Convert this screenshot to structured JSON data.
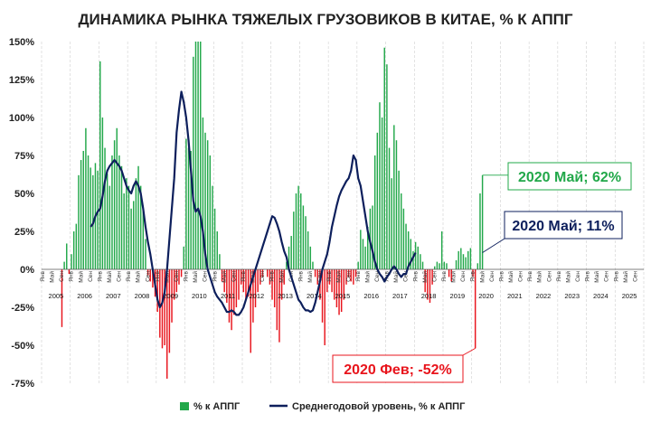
{
  "chart_data": {
    "type": "bar+line",
    "title": "ДИНАМИКА РЫНКА ТЯЖЕЛЫХ ГРУЗОВИКОВ В КИТАЕ, % К АППГ",
    "ylim": [
      -75,
      150
    ],
    "yticks": [
      "150%",
      "125%",
      "100%",
      "75%",
      "50%",
      "25%",
      "0%",
      "-25%",
      "-50%",
      "-75%"
    ],
    "ytick_values": [
      150,
      125,
      100,
      75,
      50,
      25,
      0,
      -25,
      -50,
      -75
    ],
    "month_labels": [
      "Янв",
      "Май",
      "Сен"
    ],
    "years": [
      "2005",
      "2006",
      "2007",
      "2008",
      "2009",
      "2010",
      "2011",
      "2012",
      "2013",
      "2014",
      "2015",
      "2016",
      "2017",
      "2018",
      "2019",
      "2020",
      "2021",
      "2022",
      "2023",
      "2024",
      "2025"
    ],
    "series": [
      {
        "name": "% к АППГ",
        "kind": "bar",
        "color_pos": "#22a84a",
        "color_neg": "#e8141c",
        "start": "2005-01",
        "values": [
          0,
          0,
          0,
          0,
          0,
          0,
          0,
          0,
          -38,
          5,
          17,
          -3,
          10,
          25,
          30,
          62,
          72,
          78,
          93,
          75,
          67,
          62,
          70,
          65,
          137,
          100,
          80,
          63,
          55,
          75,
          85,
          93,
          75,
          68,
          50,
          60,
          55,
          40,
          45,
          60,
          68,
          55,
          42,
          20,
          -4,
          -8,
          -12,
          -18,
          -28,
          -45,
          -52,
          -50,
          -72,
          -55,
          -35,
          -20,
          -15,
          -10,
          -5,
          15,
          86,
          80,
          78,
          140,
          150,
          150,
          150,
          100,
          90,
          85,
          75,
          55,
          40,
          25,
          10,
          -8,
          -15,
          -22,
          -35,
          -40,
          -30,
          -25,
          -20,
          -10,
          -15,
          -20,
          -18,
          -55,
          -35,
          -25,
          -15,
          -10,
          -5,
          0,
          -5,
          -10,
          -20,
          -25,
          -40,
          -48,
          -20,
          -10,
          5,
          15,
          22,
          38,
          50,
          55,
          50,
          42,
          35,
          25,
          15,
          5,
          -5,
          -10,
          -20,
          -35,
          -50,
          -15,
          -10,
          -15,
          -20,
          -25,
          -30,
          -28,
          -20,
          -10,
          -5,
          -8,
          -10,
          -5,
          5,
          26,
          20,
          15,
          28,
          40,
          42,
          75,
          90,
          110,
          100,
          146,
          135,
          80,
          60,
          95,
          85,
          65,
          50,
          40,
          30,
          25,
          20,
          12,
          18,
          15,
          10,
          5,
          -15,
          -20,
          -22,
          -10,
          2,
          5,
          4,
          25,
          5,
          4,
          -5,
          -8,
          0,
          6,
          12,
          14,
          10,
          8,
          12,
          14,
          -5,
          -52,
          4,
          50,
          62
        ]
      },
      {
        "name": "Среднегодовой уровень, % к АППГ",
        "kind": "line",
        "color": "#0d1f5c",
        "start": "2006-09",
        "values": [
          28,
          30,
          35,
          38,
          40,
          48,
          58,
          65,
          68,
          70,
          72,
          70,
          68,
          65,
          60,
          55,
          52,
          50,
          55,
          58,
          55,
          50,
          40,
          28,
          18,
          10,
          0,
          -10,
          -20,
          -25,
          -22,
          -15,
          0,
          20,
          40,
          60,
          90,
          105,
          117,
          110,
          100,
          85,
          65,
          45,
          38,
          40,
          35,
          25,
          10,
          0,
          -5,
          -10,
          -15,
          -18,
          -20,
          -22,
          -25,
          -28,
          -28,
          -27,
          -28,
          -30,
          -30,
          -28,
          -25,
          -20,
          -15,
          -10,
          -5,
          0,
          5,
          10,
          15,
          20,
          25,
          30,
          35,
          34,
          30,
          25,
          18,
          12,
          8,
          0,
          -5,
          -10,
          -15,
          -20,
          -22,
          -25,
          -27,
          -27,
          -28,
          -27,
          -22,
          -15,
          -8,
          0,
          5,
          10,
          18,
          28,
          35,
          42,
          48,
          52,
          55,
          58,
          60,
          65,
          75,
          72,
          60,
          55,
          45,
          35,
          25,
          18,
          12,
          5,
          0,
          -3,
          -5,
          -8,
          -5,
          -3,
          0,
          2,
          0,
          -3,
          -5,
          -3,
          -3,
          2,
          5,
          8,
          11
        ]
      }
    ],
    "annotations": [
      {
        "text": "2020 Май; 62%",
        "color": "#22a84a",
        "date": "2020-05",
        "value": 62
      },
      {
        "text": "2020 Май; 11%",
        "color": "#0d1f5c",
        "date": "2020-05",
        "value": 11
      },
      {
        "text": "2020 Фев; -52%",
        "color": "#e8141c",
        "date": "2020-02",
        "value": -52
      }
    ],
    "legend": {
      "position": "bottom",
      "items": [
        "% к АППГ",
        "Среднегодовой уровень, % к АППГ"
      ]
    },
    "grid": {
      "x": true,
      "y": false
    }
  },
  "colors": {
    "bar_pos": "#22a84a",
    "bar_neg": "#e8141c",
    "line": "#0d1f5c"
  }
}
